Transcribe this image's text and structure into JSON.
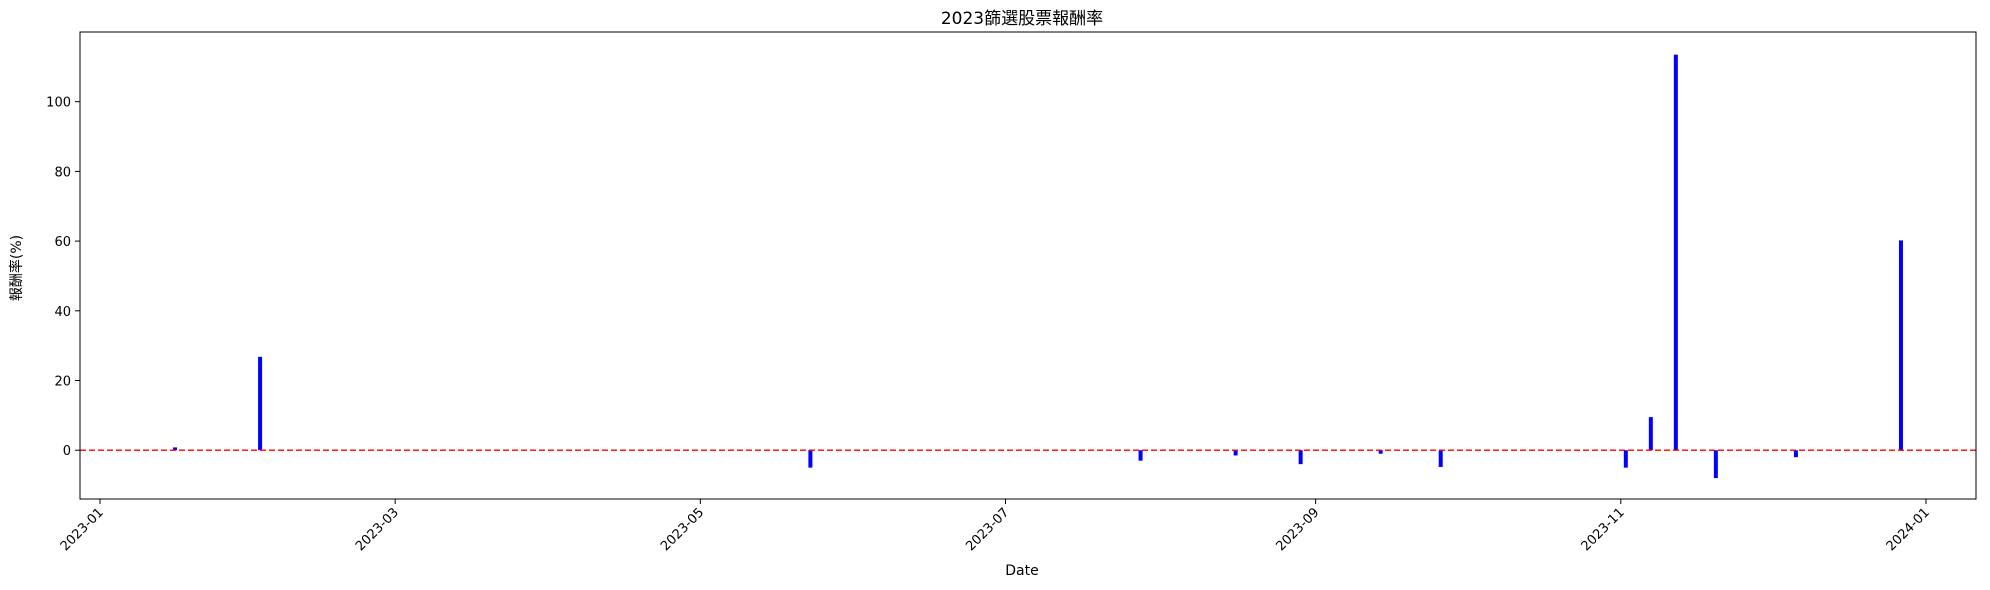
{
  "chart_data": {
    "type": "bar",
    "title": "2023篩選股票報酬率",
    "xlabel": "Date",
    "ylabel": "報酬率(%)",
    "xlim": [
      "2022-12-28",
      "2024-01-11"
    ],
    "ylim": [
      -14,
      120
    ],
    "x_ticks": [
      "2023-01",
      "2023-03",
      "2023-05",
      "2023-07",
      "2023-09",
      "2023-11",
      "2024-01"
    ],
    "y_ticks": [
      0,
      20,
      40,
      60,
      80,
      100
    ],
    "reference_line": {
      "y": 0,
      "color": "#ff0000",
      "style": "dashed"
    },
    "bar_color": "#0000ff",
    "dates": [
      "2023-01-16",
      "2023-02-02",
      "2023-05-23",
      "2023-07-28",
      "2023-08-16",
      "2023-08-29",
      "2023-09-14",
      "2023-09-26",
      "2023-11-02",
      "2023-11-07",
      "2023-11-12",
      "2023-11-20",
      "2023-12-06",
      "2023-12-27"
    ],
    "values": [
      0.8,
      26.8,
      -5,
      -3,
      -1.5,
      -4,
      -1,
      -4.8,
      -5,
      9.5,
      113.5,
      -8,
      -2,
      60.2
    ],
    "grid": false
  }
}
